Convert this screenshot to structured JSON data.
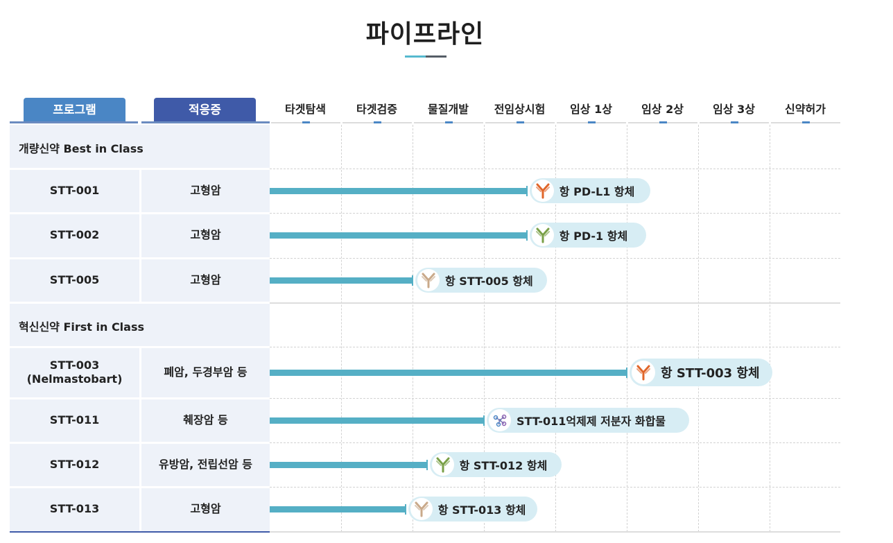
{
  "page": {
    "title": "파이프라인"
  },
  "columns": {
    "program": "프로그램",
    "indication": "적응증",
    "stages": [
      "타겟탐색",
      "타겟검증",
      "물질개발",
      "전임상시험",
      "임상 1상",
      "임상 2상",
      "임상 3상",
      "신약허가"
    ]
  },
  "sections": [
    {
      "label": "개량신약 Best in Class"
    },
    {
      "label": "혁신신약 First in Class"
    }
  ],
  "rows": [
    {
      "program": "STT-001",
      "indication": "고형암",
      "candidate": "항 PD-L1 항체",
      "icon": "antibody-orange-icon",
      "progress": 3.6
    },
    {
      "program": "STT-002",
      "indication": "고형암",
      "candidate": "항 PD-1 항체",
      "icon": "antibody-green-icon",
      "progress": 3.6
    },
    {
      "program": "STT-005",
      "indication": "고형암",
      "candidate": "항 STT-005 항체",
      "icon": "antibody-beige-icon",
      "progress": 2.0
    },
    {
      "program": "STT-003",
      "program_note": "(Nelmastobart)",
      "indication": "폐암, 두경부암 등",
      "candidate": "항 STT-003 항체",
      "icon": "antibody-orange-icon",
      "progress": 5.0
    },
    {
      "program": "STT-011",
      "indication": "췌장암 등",
      "candidate": "STT-011억제제 저분자 화합물",
      "icon": "molecule-icon",
      "progress": 3.0
    },
    {
      "program": "STT-012",
      "indication": "유방암, 전립선암 등",
      "candidate": "항 STT-012 항체",
      "icon": "antibody-green-icon",
      "progress": 2.2
    },
    {
      "program": "STT-013",
      "indication": "고형암",
      "candidate": "항 STT-013 항체",
      "icon": "antibody-beige-icon",
      "progress": 1.9
    }
  ],
  "colors": {
    "program_tag": "#4a86c5",
    "indication_tag": "#3f5aa8",
    "bar": "#55afc5",
    "pill": "#d7edf4",
    "left_panel": "#eef2f9"
  }
}
